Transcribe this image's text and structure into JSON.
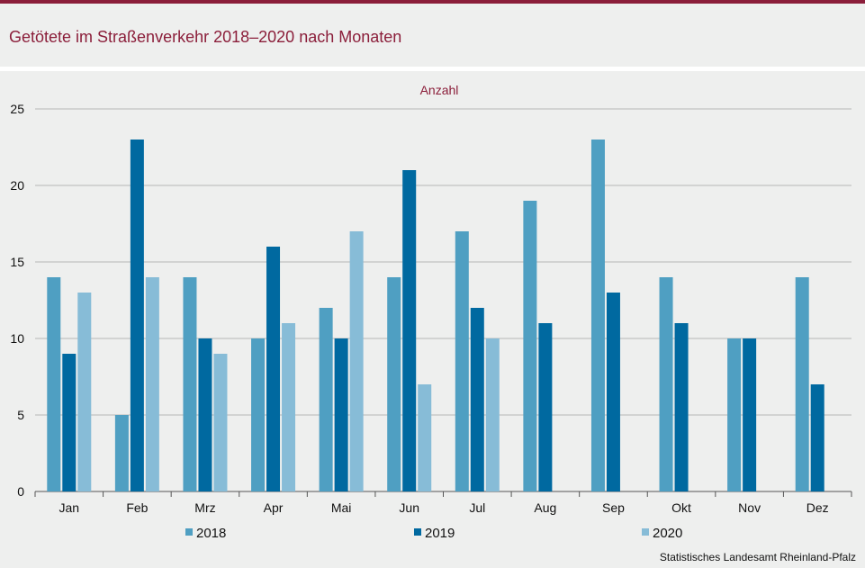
{
  "title": "Getötete im Straßenverkehr 2018–2020 nach Monaten",
  "source": "Statistisches Landesamt Rheinland-Pfalz",
  "chart_data": {
    "type": "bar",
    "ylabel": "Anzahl",
    "ylim": [
      0,
      25
    ],
    "yticks": [
      0,
      5,
      10,
      15,
      20,
      25
    ],
    "grid": true,
    "legend_position": "bottom",
    "categories": [
      "Jan",
      "Feb",
      "Mrz",
      "Apr",
      "Mai",
      "Jun",
      "Jul",
      "Aug",
      "Sep",
      "Okt",
      "Nov",
      "Dez"
    ],
    "series": [
      {
        "name": "2018",
        "color": "#4f9fc2",
        "values": [
          14,
          5,
          14,
          10,
          12,
          14,
          17,
          19,
          23,
          14,
          10,
          14
        ]
      },
      {
        "name": "2019",
        "color": "#0069a0",
        "values": [
          9,
          23,
          10,
          16,
          10,
          21,
          12,
          11,
          13,
          11,
          10,
          7
        ]
      },
      {
        "name": "2020",
        "color": "#87bcd7",
        "values": [
          13,
          14,
          9,
          11,
          17,
          7,
          10,
          null,
          null,
          null,
          null,
          null
        ]
      }
    ]
  }
}
